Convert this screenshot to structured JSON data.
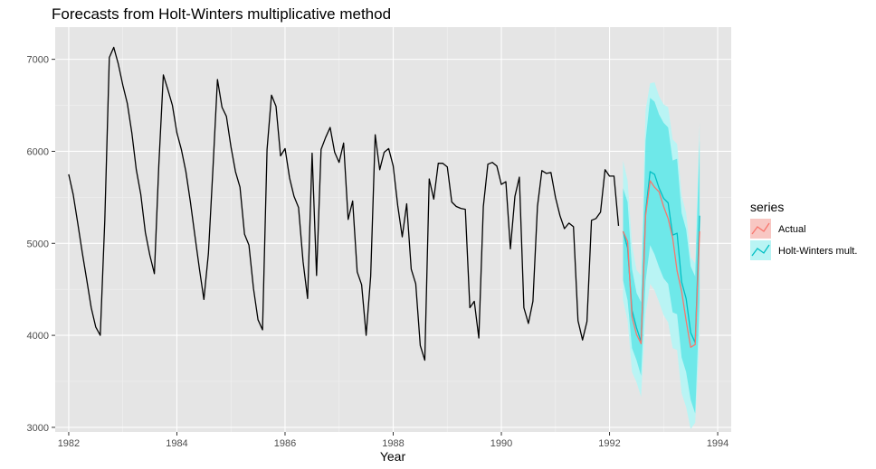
{
  "chart_data": {
    "type": "line",
    "title": "Forecasts from Holt-Winters multiplicative method",
    "xlabel": "Year",
    "ylabel": "",
    "xlim": [
      1981.75,
      1994.25
    ],
    "ylim": [
      2950,
      7350
    ],
    "x_ticks": [
      1982,
      1984,
      1986,
      1988,
      1990,
      1992,
      1994
    ],
    "y_ticks": [
      3000,
      4000,
      5000,
      6000,
      7000
    ],
    "grid": true,
    "legend": {
      "title": "series",
      "position": "right",
      "entries": [
        "Actual",
        "Holt-Winters mult."
      ]
    },
    "colors": {
      "panel": "#e5e5e5",
      "grid_major": "#ffffff",
      "history": "#000000",
      "actual": "#f8766d",
      "actual_fill": "#f8c7c3",
      "forecast": "#00bfc4",
      "band80": "#6ee8e9",
      "band95": "#b9f4f4"
    },
    "history": {
      "start": 1982.0,
      "step": 0.0833333,
      "values": [
        5750,
        5530,
        5220,
        4900,
        4600,
        4300,
        4090,
        4000,
        5250,
        7020,
        7130,
        6950,
        6720,
        6520,
        6200,
        5800,
        5530,
        5120,
        4870,
        4670,
        5850,
        6830,
        6670,
        6500,
        6200,
        6020,
        5780,
        5450,
        5080,
        4720,
        4390,
        4890,
        5810,
        6780,
        6480,
        6380,
        6050,
        5780,
        5610,
        5100,
        4980,
        4510,
        4170,
        4060,
        6020,
        6610,
        6490,
        5950,
        6030,
        5710,
        5510,
        5390,
        4800,
        4400,
        5980,
        4650,
        6020,
        6150,
        6260,
        5990,
        5880,
        6090,
        5260,
        5460,
        4690,
        4550,
        4000,
        4640,
        6180,
        5800,
        5990,
        6030,
        5840,
        5410,
        5070,
        5430,
        4720,
        4560,
        3890,
        3730,
        5700,
        5480,
        5870,
        5870,
        5830,
        5450,
        5400,
        5380,
        5370,
        4300,
        4370,
        3970,
        5400,
        5860,
        5880,
        5840,
        5640,
        5670,
        4940,
        5510,
        5720,
        4300,
        4130,
        4370,
        5400,
        5790,
        5760,
        5770,
        5500,
        5300,
        5160,
        5220,
        5180,
        4160,
        3950,
        4150,
        5250,
        5270,
        5340,
        5800,
        5730,
        5730,
        5190
      ]
    },
    "forecast": {
      "start": 1992.25,
      "step": 0.0833333,
      "values": [
        5130,
        4950,
        4270,
        4080,
        3930,
        5340,
        5780,
        5750,
        5600,
        5490,
        5440,
        5090,
        5110,
        4580,
        4400,
        4030,
        3920,
        5300
      ],
      "lo80": [
        4600,
        4380,
        3860,
        3730,
        3560,
        4590,
        4980,
        4880,
        4740,
        4620,
        4560,
        4250,
        4230,
        3760,
        3600,
        3300,
        3150,
        4380
      ],
      "hi80": [
        5600,
        5450,
        4720,
        4460,
        4360,
        6120,
        6580,
        6540,
        6400,
        6310,
        6260,
        5900,
        5920,
        5330,
        5150,
        4750,
        4640,
        6120
      ],
      "lo95": [
        4380,
        4160,
        3600,
        3490,
        3330,
        4230,
        4560,
        4490,
        4360,
        4220,
        4140,
        3860,
        3840,
        3370,
        3220,
        2980,
        3050,
        4000
      ],
      "hi95": [
        5900,
        5680,
        4980,
        4710,
        4650,
        6450,
        6740,
        6750,
        6600,
        6510,
        6480,
        6130,
        6080,
        5520,
        5330,
        4850,
        4780,
        6320
      ]
    },
    "actual": {
      "start": 1992.25,
      "step": 0.0833333,
      "values": [
        5130,
        5020,
        4200,
        4010,
        3910,
        5300,
        5680,
        5610,
        5560,
        5400,
        5270,
        5060,
        4700,
        4480,
        4160,
        3870,
        3900,
        5130
      ]
    }
  }
}
